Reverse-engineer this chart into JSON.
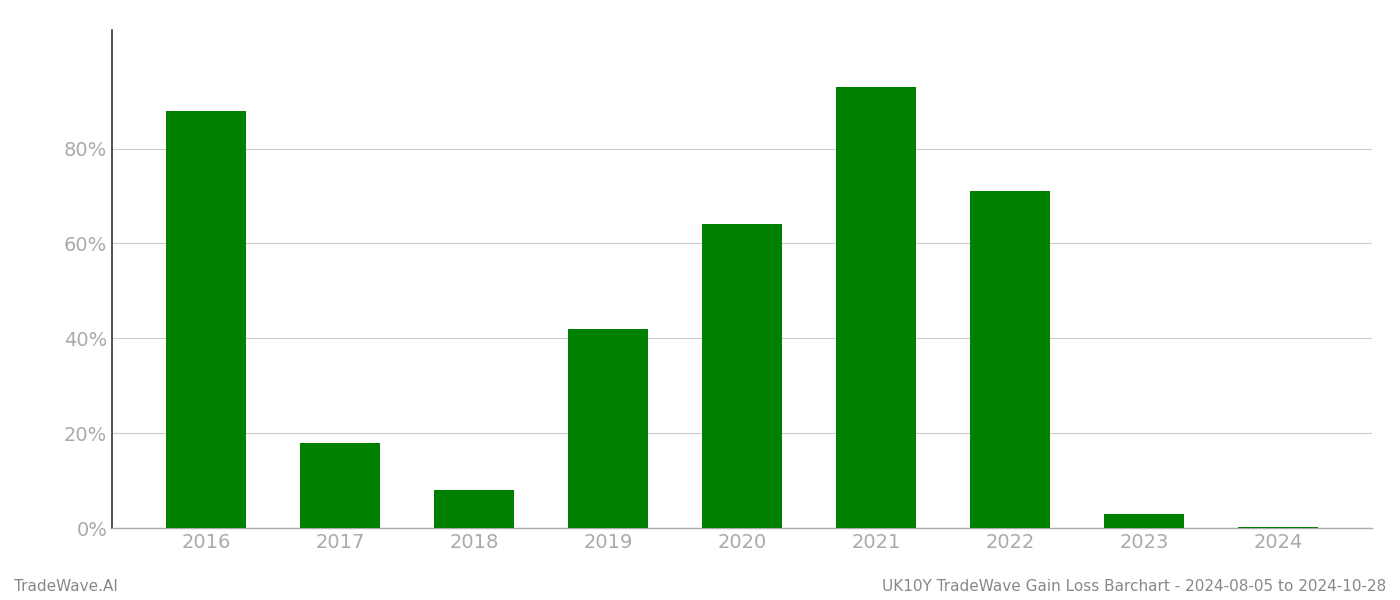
{
  "years": [
    "2016",
    "2017",
    "2018",
    "2019",
    "2020",
    "2021",
    "2022",
    "2023",
    "2024"
  ],
  "values": [
    0.88,
    0.18,
    0.08,
    0.42,
    0.64,
    0.93,
    0.71,
    0.03,
    0.002
  ],
  "bar_color": "#008000",
  "background_color": "#ffffff",
  "grid_color": "#cccccc",
  "axis_color": "#aaaaaa",
  "tick_label_color": "#aaaaaa",
  "ylabel_ticks": [
    0.0,
    0.2,
    0.4,
    0.6,
    0.8
  ],
  "ylabel_labels": [
    "0%",
    "20%",
    "40%",
    "60%",
    "80%"
  ],
  "footer_left": "TradeWave.AI",
  "footer_right": "UK10Y TradeWave Gain Loss Barchart - 2024-08-05 to 2024-10-28",
  "footer_color": "#888888",
  "footer_fontsize": 11,
  "bar_width": 0.6,
  "ylim": [
    0,
    1.05
  ],
  "tick_fontsize": 14
}
